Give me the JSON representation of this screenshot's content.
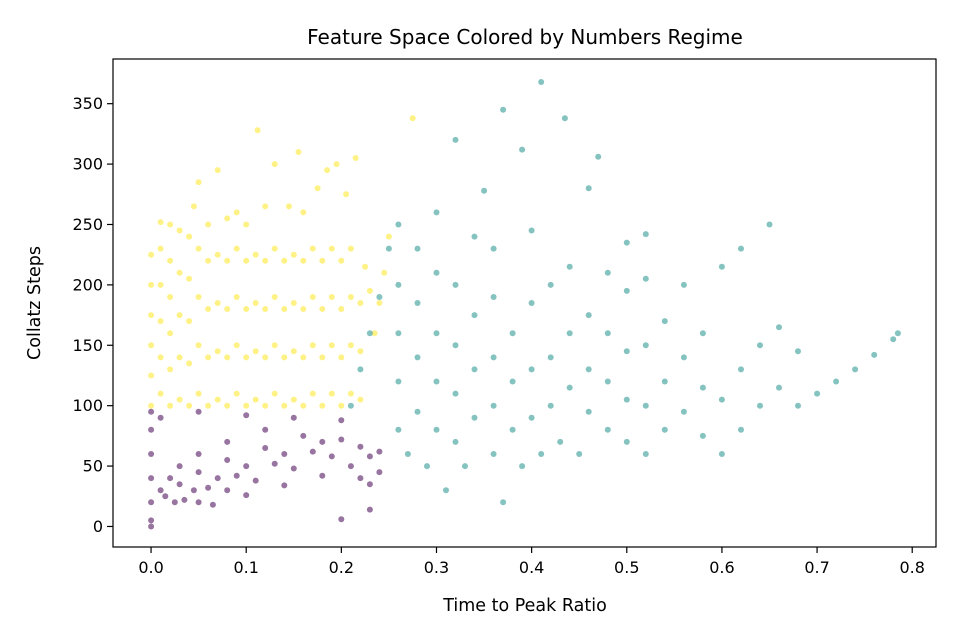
{
  "chart_data": {
    "type": "scatter",
    "title": "Feature Space Colored by Numbers Regime",
    "xlabel": "Time to Peak Ratio",
    "ylabel": "Collatz Steps",
    "xlim": [
      -0.04,
      0.825
    ],
    "ylim": [
      -17,
      387
    ],
    "xticks": [
      0.0,
      0.1,
      0.2,
      0.3,
      0.4,
      0.5,
      0.6,
      0.7,
      0.8
    ],
    "xtick_labels": [
      "0.0",
      "0.1",
      "0.2",
      "0.3",
      "0.4",
      "0.5",
      "0.6",
      "0.7",
      "0.8"
    ],
    "yticks": [
      0,
      50,
      100,
      150,
      200,
      250,
      300,
      350
    ],
    "ytick_labels": [
      "0",
      "50",
      "100",
      "150",
      "200",
      "250",
      "300",
      "350"
    ],
    "grid": false,
    "legend": "none",
    "point_alpha": 0.55,
    "colors": {
      "low": "#440154",
      "mid": "#21918c",
      "high": "#fde725"
    },
    "series": [
      {
        "color": "#fde725",
        "points": [
          [
            0.0,
            100
          ],
          [
            0.0,
            125
          ],
          [
            0.0,
            150
          ],
          [
            0.0,
            175
          ],
          [
            0.0,
            200
          ],
          [
            0.0,
            225
          ],
          [
            0.01,
            110
          ],
          [
            0.01,
            140
          ],
          [
            0.01,
            170
          ],
          [
            0.01,
            200
          ],
          [
            0.01,
            230
          ],
          [
            0.01,
            252
          ],
          [
            0.02,
            100
          ],
          [
            0.02,
            130
          ],
          [
            0.02,
            160
          ],
          [
            0.02,
            190
          ],
          [
            0.02,
            220
          ],
          [
            0.02,
            250
          ],
          [
            0.03,
            105
          ],
          [
            0.03,
            140
          ],
          [
            0.03,
            175
          ],
          [
            0.03,
            210
          ],
          [
            0.03,
            245
          ],
          [
            0.04,
            100
          ],
          [
            0.04,
            135
          ],
          [
            0.04,
            170
          ],
          [
            0.04,
            205
          ],
          [
            0.04,
            240
          ],
          [
            0.045,
            265
          ],
          [
            0.05,
            110
          ],
          [
            0.05,
            150
          ],
          [
            0.05,
            190
          ],
          [
            0.05,
            230
          ],
          [
            0.05,
            285
          ],
          [
            0.06,
            100
          ],
          [
            0.06,
            140
          ],
          [
            0.06,
            180
          ],
          [
            0.06,
            220
          ],
          [
            0.06,
            250
          ],
          [
            0.07,
            105
          ],
          [
            0.07,
            145
          ],
          [
            0.07,
            185
          ],
          [
            0.07,
            225
          ],
          [
            0.07,
            295
          ],
          [
            0.08,
            100
          ],
          [
            0.08,
            140
          ],
          [
            0.08,
            180
          ],
          [
            0.08,
            220
          ],
          [
            0.08,
            255
          ],
          [
            0.09,
            110
          ],
          [
            0.09,
            150
          ],
          [
            0.09,
            190
          ],
          [
            0.09,
            230
          ],
          [
            0.09,
            260
          ],
          [
            0.1,
            100
          ],
          [
            0.1,
            140
          ],
          [
            0.1,
            180
          ],
          [
            0.1,
            220
          ],
          [
            0.1,
            250
          ],
          [
            0.11,
            105
          ],
          [
            0.11,
            145
          ],
          [
            0.11,
            185
          ],
          [
            0.11,
            225
          ],
          [
            0.112,
            328
          ],
          [
            0.12,
            100
          ],
          [
            0.12,
            140
          ],
          [
            0.12,
            180
          ],
          [
            0.12,
            220
          ],
          [
            0.12,
            265
          ],
          [
            0.13,
            110
          ],
          [
            0.13,
            150
          ],
          [
            0.13,
            190
          ],
          [
            0.13,
            230
          ],
          [
            0.13,
            300
          ],
          [
            0.14,
            100
          ],
          [
            0.14,
            140
          ],
          [
            0.14,
            180
          ],
          [
            0.14,
            220
          ],
          [
            0.145,
            265
          ],
          [
            0.15,
            105
          ],
          [
            0.15,
            145
          ],
          [
            0.15,
            185
          ],
          [
            0.15,
            225
          ],
          [
            0.155,
            310
          ],
          [
            0.16,
            100
          ],
          [
            0.16,
            140
          ],
          [
            0.16,
            180
          ],
          [
            0.16,
            220
          ],
          [
            0.16,
            260
          ],
          [
            0.17,
            110
          ],
          [
            0.17,
            150
          ],
          [
            0.17,
            190
          ],
          [
            0.17,
            230
          ],
          [
            0.175,
            280
          ],
          [
            0.18,
            100
          ],
          [
            0.18,
            140
          ],
          [
            0.18,
            180
          ],
          [
            0.18,
            220
          ],
          [
            0.185,
            295
          ],
          [
            0.19,
            110
          ],
          [
            0.19,
            150
          ],
          [
            0.19,
            190
          ],
          [
            0.19,
            230
          ],
          [
            0.195,
            300
          ],
          [
            0.2,
            100
          ],
          [
            0.2,
            140
          ],
          [
            0.2,
            180
          ],
          [
            0.2,
            220
          ],
          [
            0.205,
            275
          ],
          [
            0.21,
            110
          ],
          [
            0.21,
            150
          ],
          [
            0.21,
            190
          ],
          [
            0.21,
            230
          ],
          [
            0.215,
            305
          ],
          [
            0.22,
            105
          ],
          [
            0.22,
            145
          ],
          [
            0.22,
            185
          ],
          [
            0.225,
            215
          ],
          [
            0.23,
            195
          ],
          [
            0.235,
            160
          ],
          [
            0.24,
            185
          ],
          [
            0.245,
            210
          ],
          [
            0.25,
            240
          ],
          [
            0.275,
            338
          ]
        ]
      },
      {
        "color": "#440154",
        "points": [
          [
            0.0,
            0
          ],
          [
            0.0,
            5
          ],
          [
            0.0,
            20
          ],
          [
            0.0,
            40
          ],
          [
            0.0,
            60
          ],
          [
            0.0,
            80
          ],
          [
            0.0,
            95
          ],
          [
            0.01,
            30
          ],
          [
            0.02,
            40
          ],
          [
            0.03,
            50
          ],
          [
            0.05,
            60
          ],
          [
            0.08,
            70
          ],
          [
            0.12,
            80
          ],
          [
            0.015,
            25
          ],
          [
            0.03,
            35
          ],
          [
            0.05,
            45
          ],
          [
            0.08,
            55
          ],
          [
            0.12,
            65
          ],
          [
            0.16,
            75
          ],
          [
            0.025,
            20
          ],
          [
            0.045,
            30
          ],
          [
            0.07,
            40
          ],
          [
            0.1,
            50
          ],
          [
            0.14,
            60
          ],
          [
            0.18,
            70
          ],
          [
            0.035,
            22
          ],
          [
            0.06,
            32
          ],
          [
            0.09,
            42
          ],
          [
            0.13,
            52
          ],
          [
            0.17,
            62
          ],
          [
            0.2,
            72
          ],
          [
            0.05,
            20
          ],
          [
            0.08,
            30
          ],
          [
            0.11,
            38
          ],
          [
            0.15,
            48
          ],
          [
            0.19,
            58
          ],
          [
            0.22,
            66
          ],
          [
            0.065,
            18
          ],
          [
            0.1,
            26
          ],
          [
            0.14,
            34
          ],
          [
            0.18,
            42
          ],
          [
            0.21,
            50
          ],
          [
            0.23,
            58
          ],
          [
            0.01,
            90
          ],
          [
            0.05,
            95
          ],
          [
            0.1,
            92
          ],
          [
            0.15,
            90
          ],
          [
            0.2,
            88
          ],
          [
            0.24,
            62
          ],
          [
            0.22,
            40
          ],
          [
            0.23,
            35
          ],
          [
            0.2,
            6
          ],
          [
            0.23,
            14
          ],
          [
            0.24,
            45
          ]
        ]
      },
      {
        "color": "#21918c",
        "points": [
          [
            0.21,
            100
          ],
          [
            0.22,
            130
          ],
          [
            0.23,
            160
          ],
          [
            0.24,
            190
          ],
          [
            0.25,
            230
          ],
          [
            0.26,
            80
          ],
          [
            0.26,
            120
          ],
          [
            0.26,
            160
          ],
          [
            0.26,
            200
          ],
          [
            0.26,
            250
          ],
          [
            0.27,
            60
          ],
          [
            0.28,
            95
          ],
          [
            0.28,
            140
          ],
          [
            0.28,
            185
          ],
          [
            0.28,
            230
          ],
          [
            0.29,
            50
          ],
          [
            0.3,
            80
          ],
          [
            0.3,
            120
          ],
          [
            0.3,
            160
          ],
          [
            0.3,
            210
          ],
          [
            0.3,
            260
          ],
          [
            0.31,
            30
          ],
          [
            0.32,
            70
          ],
          [
            0.32,
            110
          ],
          [
            0.32,
            150
          ],
          [
            0.32,
            200
          ],
          [
            0.32,
            320
          ],
          [
            0.33,
            50
          ],
          [
            0.34,
            90
          ],
          [
            0.34,
            130
          ],
          [
            0.34,
            175
          ],
          [
            0.34,
            240
          ],
          [
            0.35,
            278
          ],
          [
            0.36,
            60
          ],
          [
            0.36,
            100
          ],
          [
            0.36,
            140
          ],
          [
            0.36,
            190
          ],
          [
            0.36,
            230
          ],
          [
            0.37,
            20
          ],
          [
            0.38,
            80
          ],
          [
            0.38,
            120
          ],
          [
            0.38,
            160
          ],
          [
            0.37,
            345
          ],
          [
            0.39,
            50
          ],
          [
            0.4,
            90
          ],
          [
            0.4,
            130
          ],
          [
            0.4,
            185
          ],
          [
            0.4,
            245
          ],
          [
            0.39,
            312
          ],
          [
            0.41,
            60
          ],
          [
            0.42,
            100
          ],
          [
            0.42,
            140
          ],
          [
            0.42,
            200
          ],
          [
            0.41,
            368
          ],
          [
            0.43,
            70
          ],
          [
            0.44,
            115
          ],
          [
            0.44,
            160
          ],
          [
            0.44,
            215
          ],
          [
            0.435,
            338
          ],
          [
            0.45,
            60
          ],
          [
            0.46,
            95
          ],
          [
            0.46,
            130
          ],
          [
            0.46,
            175
          ],
          [
            0.46,
            280
          ],
          [
            0.48,
            80
          ],
          [
            0.48,
            120
          ],
          [
            0.48,
            160
          ],
          [
            0.48,
            210
          ],
          [
            0.47,
            306
          ],
          [
            0.5,
            70
          ],
          [
            0.5,
            105
          ],
          [
            0.5,
            145
          ],
          [
            0.5,
            195
          ],
          [
            0.5,
            235
          ],
          [
            0.52,
            60
          ],
          [
            0.52,
            100
          ],
          [
            0.52,
            150
          ],
          [
            0.52,
            205
          ],
          [
            0.52,
            242
          ],
          [
            0.54,
            80
          ],
          [
            0.54,
            120
          ],
          [
            0.54,
            170
          ],
          [
            0.56,
            95
          ],
          [
            0.56,
            140
          ],
          [
            0.56,
            200
          ],
          [
            0.58,
            75
          ],
          [
            0.58,
            115
          ],
          [
            0.58,
            160
          ],
          [
            0.6,
            60
          ],
          [
            0.6,
            105
          ],
          [
            0.6,
            215
          ],
          [
            0.62,
            80
          ],
          [
            0.62,
            130
          ],
          [
            0.62,
            230
          ],
          [
            0.64,
            100
          ],
          [
            0.64,
            150
          ],
          [
            0.65,
            250
          ],
          [
            0.66,
            115
          ],
          [
            0.66,
            165
          ],
          [
            0.68,
            100
          ],
          [
            0.68,
            145
          ],
          [
            0.7,
            110
          ],
          [
            0.72,
            120
          ],
          [
            0.74,
            130
          ],
          [
            0.76,
            142
          ],
          [
            0.78,
            155
          ],
          [
            0.785,
            160
          ]
        ]
      }
    ]
  }
}
